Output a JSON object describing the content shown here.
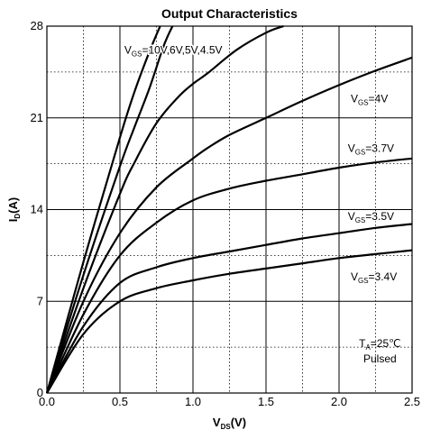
{
  "chart_data": {
    "type": "line",
    "title": "Output Characteristics",
    "xlabel": {
      "main": "V",
      "sub": "DS",
      "unit": "(V)"
    },
    "ylabel": {
      "main": "I",
      "sub": "D",
      "unit": "(A)"
    },
    "xlim": [
      0,
      2.5
    ],
    "ylim": [
      0,
      28
    ],
    "xticks": [
      0,
      0.5,
      1.0,
      1.5,
      2.0,
      2.5
    ],
    "xtick_labels": [
      "0.0",
      "0.5",
      "1.0",
      "1.5",
      "2.0",
      "2.5"
    ],
    "yticks": [
      0,
      7,
      14,
      21,
      28
    ],
    "ytick_labels": [
      "0",
      "7",
      "14",
      "21",
      "28"
    ],
    "minor_grid_x": [
      0.25,
      0.75,
      1.25,
      1.75,
      2.25
    ],
    "minor_grid_y": [
      3.5,
      10.5,
      17.5,
      24.5
    ],
    "grid": true,
    "series": [
      {
        "x": [
          0,
          0.25,
          0.5,
          0.6,
          0.7,
          0.775
        ],
        "y": [
          0,
          10,
          19.5,
          23,
          26,
          28
        ]
      },
      {
        "x": [
          0,
          0.25,
          0.5,
          0.6,
          0.7,
          0.8,
          0.86
        ],
        "y": [
          0,
          9,
          17.3,
          20.3,
          23.2,
          26.5,
          28
        ]
      },
      {
        "x": [
          0,
          0.25,
          0.5,
          0.6,
          0.75,
          0.9,
          1.0,
          1.1,
          1.3,
          1.5,
          1.62
        ],
        "y": [
          0,
          8,
          15.2,
          17.6,
          20.6,
          22.6,
          23.6,
          24.4,
          26.2,
          27.5,
          28
        ]
      },
      {
        "x": [
          0,
          0.25,
          0.5,
          0.75,
          1.0,
          1.1,
          1.25,
          1.5,
          1.75,
          2.0,
          2.25,
          2.5
        ],
        "y": [
          0,
          7,
          12.2,
          15.7,
          17.9,
          18.7,
          19.7,
          21.0,
          22.3,
          23.5,
          24.6,
          25.6
        ]
      },
      {
        "x": [
          0,
          0.25,
          0.5,
          0.75,
          1.0,
          1.25,
          1.5,
          1.75,
          2.0,
          2.25,
          2.5
        ],
        "y": [
          0,
          6,
          10.5,
          13.0,
          14.7,
          15.6,
          16.2,
          16.7,
          17.2,
          17.6,
          17.9
        ]
      },
      {
        "x": [
          0,
          0.25,
          0.5,
          0.75,
          1.0,
          1.25,
          1.5,
          1.75,
          2.0,
          2.25,
          2.5
        ],
        "y": [
          0,
          5.1,
          8.4,
          9.6,
          10.3,
          10.8,
          11.3,
          11.8,
          12.2,
          12.6,
          12.9
        ]
      },
      {
        "x": [
          0,
          0.25,
          0.5,
          0.75,
          1.0,
          1.25,
          1.5,
          1.75,
          2.0,
          2.25,
          2.5
        ],
        "y": [
          0,
          4.5,
          7.0,
          8.0,
          8.6,
          9.1,
          9.5,
          9.9,
          10.3,
          10.6,
          10.9
        ]
      }
    ],
    "annotations": [
      {
        "main": "V",
        "sub": "GS",
        "rest": "=10V,6V,5V,4.5V",
        "x": 0.53,
        "y": 25.9
      },
      {
        "main": "V",
        "sub": "GS",
        "rest": "=4V",
        "x": 2.08,
        "y": 22.2
      },
      {
        "main": "V",
        "sub": "GS",
        "rest": "=3.7V",
        "x": 2.06,
        "y": 18.4
      },
      {
        "main": "V",
        "sub": "GS",
        "rest": "=3.5V",
        "x": 2.06,
        "y": 13.2
      },
      {
        "main": "V",
        "sub": "GS",
        "rest": "=3.4V",
        "x": 2.08,
        "y": 8.6
      }
    ],
    "conditions": {
      "main": "T",
      "sub": "A",
      "rest": "=25℃",
      "line2": "Pulsed",
      "x": 2.28,
      "y": 3.5
    }
  }
}
